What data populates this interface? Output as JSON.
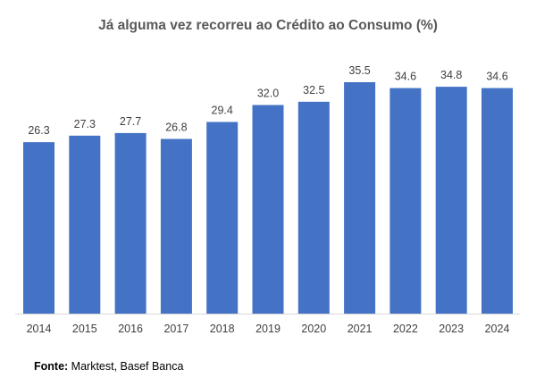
{
  "chart_data": {
    "type": "bar",
    "title": "Já alguma vez recorreu ao Crédito ao Consumo (%)",
    "categories": [
      "2014",
      "2015",
      "2016",
      "2017",
      "2018",
      "2019",
      "2020",
      "2021",
      "2022",
      "2023",
      "2024"
    ],
    "values": [
      26.3,
      27.3,
      27.7,
      26.8,
      29.4,
      32.0,
      32.5,
      35.5,
      34.6,
      34.8,
      34.6
    ],
    "value_labels": [
      "26.3",
      "27.3",
      "27.7",
      "26.8",
      "29.4",
      "32.0",
      "32.5",
      "35.5",
      "34.6",
      "34.8",
      "34.6"
    ],
    "xlabel": "",
    "ylabel": "",
    "ylim": [
      0,
      35.5
    ],
    "bar_color": "#4472C4",
    "axis_color": "#D9D9D9",
    "grid": false
  },
  "source": {
    "label": "Fonte:",
    "text": " Marktest, Basef Banca"
  }
}
